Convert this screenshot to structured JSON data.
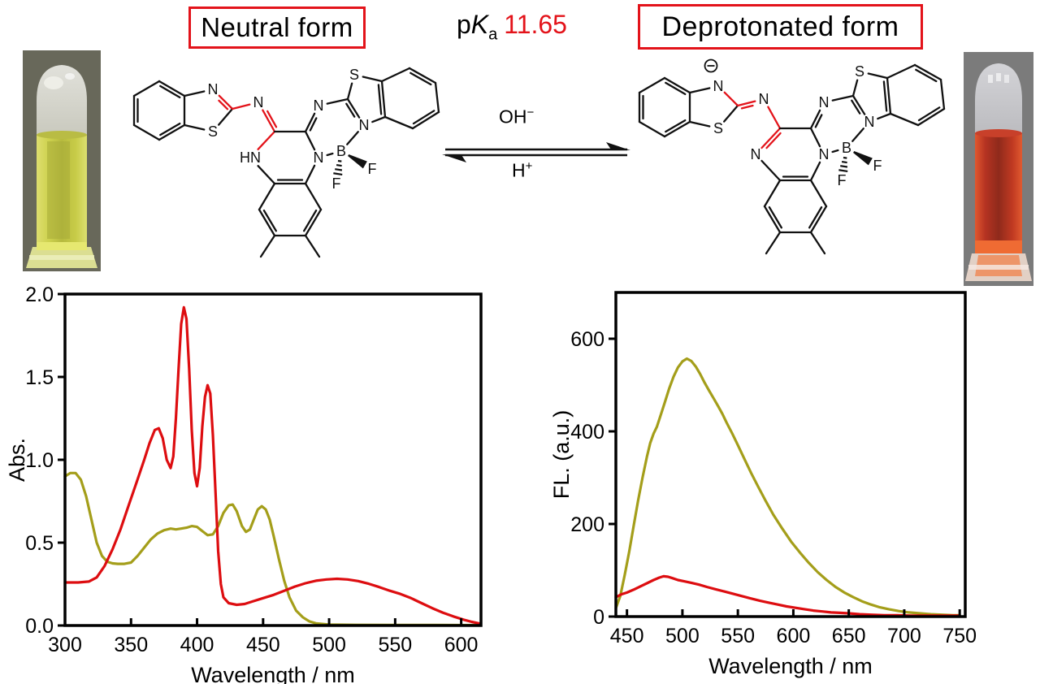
{
  "header": {
    "neutral_label": "Neutral form",
    "deprotonated_label": "Deprotonated form",
    "pka": {
      "p": "p",
      "k": "K",
      "sub": "a",
      "value": "11.65"
    },
    "accent_red": "#e3131a"
  },
  "equilibrium": {
    "above": "OH",
    "above_sup": "−",
    "below": "H",
    "below_sup": "+"
  },
  "structures": {
    "neutral": {
      "labels": {
        "N1": "N",
        "S1": "S",
        "N2": "N",
        "N3": "HN",
        "N4": "N",
        "N5": "N",
        "S2": "S",
        "N6": "N",
        "B": "B",
        "F1": "F",
        "F2": "F"
      },
      "charge": null,
      "highlight_color": "#e3131a"
    },
    "deprotonated": {
      "labels": {
        "N1": "N",
        "S1": "S",
        "N2": "N",
        "N3": "N",
        "N4": "N",
        "N5": "N",
        "S2": "S",
        "N6": "N",
        "B": "B",
        "F1": "F",
        "F2": "F"
      },
      "charge": "−",
      "highlight_color": "#e3131a"
    }
  },
  "vials": {
    "left": {
      "description": "tube-with-yellow-solution",
      "liquid_color": "#ccd04a"
    },
    "right": {
      "description": "tube-with-red-solution",
      "liquid_color": "#c43a20"
    }
  },
  "chart_data": [
    {
      "id": "abs",
      "type": "line",
      "title": "",
      "xlabel": "Wavelength / nm",
      "ylabel": "Abs.",
      "xlim": [
        300,
        615
      ],
      "ylim": [
        0,
        2.0
      ],
      "grid": false,
      "legend": "none",
      "xticks": [
        {
          "v": 300,
          "label": "300"
        },
        {
          "v": 350,
          "label": "350"
        },
        {
          "v": 400,
          "label": "400"
        },
        {
          "v": 450,
          "label": "450"
        },
        {
          "v": 500,
          "label": "500"
        },
        {
          "v": 550,
          "label": "550"
        },
        {
          "v": 600,
          "label": "600"
        }
      ],
      "yticks": [
        {
          "v": 0,
          "label": "0.0"
        },
        {
          "v": 0.5,
          "label": "0.5"
        },
        {
          "v": 1,
          "label": "1.0"
        },
        {
          "v": 1.5,
          "label": "1.5"
        },
        {
          "v": 2,
          "label": "2.0"
        }
      ],
      "series": [
        {
          "name": "neutral_form_yellow",
          "color": "#a49e1a",
          "points": [
            [
              300,
              0.9
            ],
            [
              304,
              0.92
            ],
            [
              308,
              0.92
            ],
            [
              312,
              0.88
            ],
            [
              316,
              0.78
            ],
            [
              320,
              0.64
            ],
            [
              324,
              0.5
            ],
            [
              328,
              0.42
            ],
            [
              332,
              0.385
            ],
            [
              336,
              0.375
            ],
            [
              340,
              0.372
            ],
            [
              345,
              0.372
            ],
            [
              350,
              0.38
            ],
            [
              355,
              0.42
            ],
            [
              360,
              0.47
            ],
            [
              365,
              0.52
            ],
            [
              370,
              0.555
            ],
            [
              375,
              0.575
            ],
            [
              380,
              0.585
            ],
            [
              384,
              0.58
            ],
            [
              388,
              0.585
            ],
            [
              392,
              0.59
            ],
            [
              396,
              0.6
            ],
            [
              400,
              0.595
            ],
            [
              404,
              0.57
            ],
            [
              408,
              0.545
            ],
            [
              412,
              0.55
            ],
            [
              416,
              0.6
            ],
            [
              420,
              0.68
            ],
            [
              424,
              0.725
            ],
            [
              427,
              0.73
            ],
            [
              430,
              0.69
            ],
            [
              434,
              0.6
            ],
            [
              437,
              0.565
            ],
            [
              440,
              0.58
            ],
            [
              443,
              0.64
            ],
            [
              446,
              0.7
            ],
            [
              449,
              0.72
            ],
            [
              452,
              0.7
            ],
            [
              455,
              0.64
            ],
            [
              458,
              0.54
            ],
            [
              462,
              0.4
            ],
            [
              466,
              0.27
            ],
            [
              470,
              0.17
            ],
            [
              475,
              0.09
            ],
            [
              480,
              0.05
            ],
            [
              485,
              0.025
            ],
            [
              490,
              0.013
            ],
            [
              500,
              0.006
            ],
            [
              520,
              0.004
            ],
            [
              550,
              0.003
            ],
            [
              580,
              0.003
            ],
            [
              615,
              0.002
            ]
          ]
        },
        {
          "name": "deprotonated_form_red",
          "color": "#dd0d10",
          "points": [
            [
              300,
              0.26
            ],
            [
              310,
              0.26
            ],
            [
              318,
              0.265
            ],
            [
              324,
              0.29
            ],
            [
              330,
              0.36
            ],
            [
              336,
              0.46
            ],
            [
              342,
              0.58
            ],
            [
              348,
              0.72
            ],
            [
              354,
              0.86
            ],
            [
              360,
              1.0
            ],
            [
              364,
              1.1
            ],
            [
              368,
              1.18
            ],
            [
              371,
              1.19
            ],
            [
              374,
              1.13
            ],
            [
              377,
              1.0
            ],
            [
              380,
              0.95
            ],
            [
              382,
              1.02
            ],
            [
              384,
              1.25
            ],
            [
              386,
              1.55
            ],
            [
              388,
              1.82
            ],
            [
              390,
              1.92
            ],
            [
              392,
              1.85
            ],
            [
              394,
              1.55
            ],
            [
              396,
              1.18
            ],
            [
              398,
              0.92
            ],
            [
              400,
              0.84
            ],
            [
              402,
              0.95
            ],
            [
              404,
              1.2
            ],
            [
              406,
              1.38
            ],
            [
              408,
              1.45
            ],
            [
              410,
              1.4
            ],
            [
              412,
              1.15
            ],
            [
              414,
              0.8
            ],
            [
              416,
              0.45
            ],
            [
              418,
              0.25
            ],
            [
              420,
              0.17
            ],
            [
              424,
              0.135
            ],
            [
              430,
              0.125
            ],
            [
              436,
              0.13
            ],
            [
              442,
              0.145
            ],
            [
              450,
              0.165
            ],
            [
              458,
              0.185
            ],
            [
              466,
              0.21
            ],
            [
              474,
              0.235
            ],
            [
              482,
              0.255
            ],
            [
              490,
              0.27
            ],
            [
              498,
              0.278
            ],
            [
              506,
              0.282
            ],
            [
              514,
              0.278
            ],
            [
              522,
              0.268
            ],
            [
              530,
              0.252
            ],
            [
              538,
              0.232
            ],
            [
              546,
              0.21
            ],
            [
              554,
              0.19
            ],
            [
              562,
              0.165
            ],
            [
              570,
              0.135
            ],
            [
              578,
              0.105
            ],
            [
              586,
              0.078
            ],
            [
              594,
              0.055
            ],
            [
              602,
              0.035
            ],
            [
              608,
              0.022
            ],
            [
              614,
              0.012
            ]
          ]
        }
      ]
    },
    {
      "id": "fl",
      "type": "line",
      "title": "",
      "xlabel": "Wavelength / nm",
      "ylabel": "FL. (a.u.)",
      "xlim": [
        440,
        755
      ],
      "ylim": [
        0,
        700
      ],
      "grid": false,
      "legend": "none",
      "xticks": [
        {
          "v": 450,
          "label": "450"
        },
        {
          "v": 500,
          "label": "500"
        },
        {
          "v": 550,
          "label": "550"
        },
        {
          "v": 600,
          "label": "600"
        },
        {
          "v": 650,
          "label": "650"
        },
        {
          "v": 700,
          "label": "700"
        },
        {
          "v": 750,
          "label": "750"
        }
      ],
      "yticks": [
        {
          "v": 0,
          "label": "0"
        },
        {
          "v": 200,
          "label": "200"
        },
        {
          "v": 400,
          "label": "400"
        },
        {
          "v": 600,
          "label": "600"
        }
      ],
      "series": [
        {
          "name": "neutral_form_yellow",
          "color": "#a49e1a",
          "points": [
            [
              440,
              18
            ],
            [
              444,
              45
            ],
            [
              448,
              90
            ],
            [
              452,
              140
            ],
            [
              456,
              195
            ],
            [
              460,
              250
            ],
            [
              464,
              300
            ],
            [
              468,
              345
            ],
            [
              471,
              375
            ],
            [
              474,
              395
            ],
            [
              477,
              410
            ],
            [
              480,
              432
            ],
            [
              484,
              462
            ],
            [
              488,
              492
            ],
            [
              492,
              518
            ],
            [
              496,
              538
            ],
            [
              500,
              551
            ],
            [
              504,
              557
            ],
            [
              508,
              552
            ],
            [
              512,
              540
            ],
            [
              516,
              524
            ],
            [
              520,
              505
            ],
            [
              524,
              488
            ],
            [
              528,
              472
            ],
            [
              532,
              455
            ],
            [
              536,
              438
            ],
            [
              540,
              418
            ],
            [
              545,
              395
            ],
            [
              550,
              370
            ],
            [
              556,
              340
            ],
            [
              562,
              310
            ],
            [
              568,
              282
            ],
            [
              575,
              250
            ],
            [
              582,
              220
            ],
            [
              590,
              190
            ],
            [
              598,
              162
            ],
            [
              606,
              138
            ],
            [
              614,
              116
            ],
            [
              622,
              96
            ],
            [
              630,
              79
            ],
            [
              638,
              64
            ],
            [
              646,
              52
            ],
            [
              654,
              42
            ],
            [
              662,
              33
            ],
            [
              670,
              26
            ],
            [
              678,
              20
            ],
            [
              686,
              16
            ],
            [
              695,
              12
            ],
            [
              704,
              9
            ],
            [
              714,
              7
            ],
            [
              724,
              5
            ],
            [
              734,
              4
            ],
            [
              744,
              3
            ],
            [
              750,
              3
            ]
          ]
        },
        {
          "name": "deprotonated_form_red",
          "color": "#dd0d10",
          "points": [
            [
              440,
              42
            ],
            [
              445,
              48
            ],
            [
              450,
              52
            ],
            [
              456,
              58
            ],
            [
              462,
              65
            ],
            [
              468,
              72
            ],
            [
              474,
              79
            ],
            [
              479,
              84
            ],
            [
              483,
              87
            ],
            [
              487,
              86
            ],
            [
              491,
              83
            ],
            [
              496,
              79
            ],
            [
              502,
              76
            ],
            [
              508,
              73
            ],
            [
              515,
              69
            ],
            [
              522,
              64
            ],
            [
              530,
              59
            ],
            [
              538,
              54
            ],
            [
              546,
              49
            ],
            [
              554,
              44
            ],
            [
              562,
              39
            ],
            [
              570,
              34
            ],
            [
              578,
              30
            ],
            [
              586,
              26
            ],
            [
              594,
              22
            ],
            [
              602,
              19
            ],
            [
              610,
              16
            ],
            [
              618,
              13
            ],
            [
              626,
              11
            ],
            [
              634,
              9
            ],
            [
              642,
              8
            ],
            [
              650,
              7
            ],
            [
              660,
              5
            ],
            [
              670,
              4
            ],
            [
              682,
              3
            ],
            [
              694,
              3
            ],
            [
              706,
              2
            ],
            [
              720,
              2
            ],
            [
              735,
              2
            ],
            [
              750,
              2
            ]
          ]
        }
      ]
    }
  ]
}
